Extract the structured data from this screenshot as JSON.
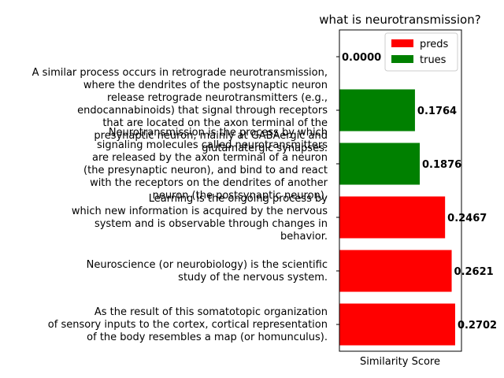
{
  "chart_data": {
    "type": "bar",
    "orientation": "horizontal",
    "title": "what is neurotransmission?",
    "xlabel": "Similarity Score",
    "ylabel": "",
    "xlim": [
      0,
      0.285
    ],
    "grid": false,
    "legend": {
      "placement": "top-right",
      "entries": [
        {
          "name": "preds",
          "color": "#ff0000"
        },
        {
          "name": "trues",
          "color": "#008000"
        }
      ]
    },
    "categories": [
      "",
      "A similar process occurs in retrograde neurotransmission,\nwhere the dendrites of the postsynaptic neuron\nrelease retrograde neurotransmitters (e.g.,\nendocannabinoids) that signal through receptors\nthat are located on the axon terminal of the\npresynaptic neuron, mainly at GABAergic and\nglutamatergic synapses.",
      "Neurotransmission is the process by which\nsignaling molecules called neurotransmitters\nare released by the axon terminal of a neuron\n(the presynaptic neuron), and bind to and react\nwith the receptors on the dendrites of another\nneuron (the postsynaptic neuron).",
      "Learning is the ongoing process by\nwhich new information is acquired by the nervous\nsystem and is observable through changes in\nbehavior.",
      "Neuroscience (or neurobiology) is the scientific\nstudy of the nervous system.",
      "As the result of this somatotopic organization\nof sensory inputs to the cortex, cortical representation\nof the body resembles a map (or homunculus)."
    ],
    "values": [
      0.0,
      0.1764,
      0.1876,
      0.2467,
      0.2621,
      0.2702
    ],
    "value_labels": [
      "0.0000",
      "0.1764",
      "0.1876",
      "0.2467",
      "0.2621",
      "0.2702"
    ],
    "bar_colors": [
      "#ff0000",
      "#008000",
      "#008000",
      "#ff0000",
      "#ff0000",
      "#ff0000"
    ]
  }
}
